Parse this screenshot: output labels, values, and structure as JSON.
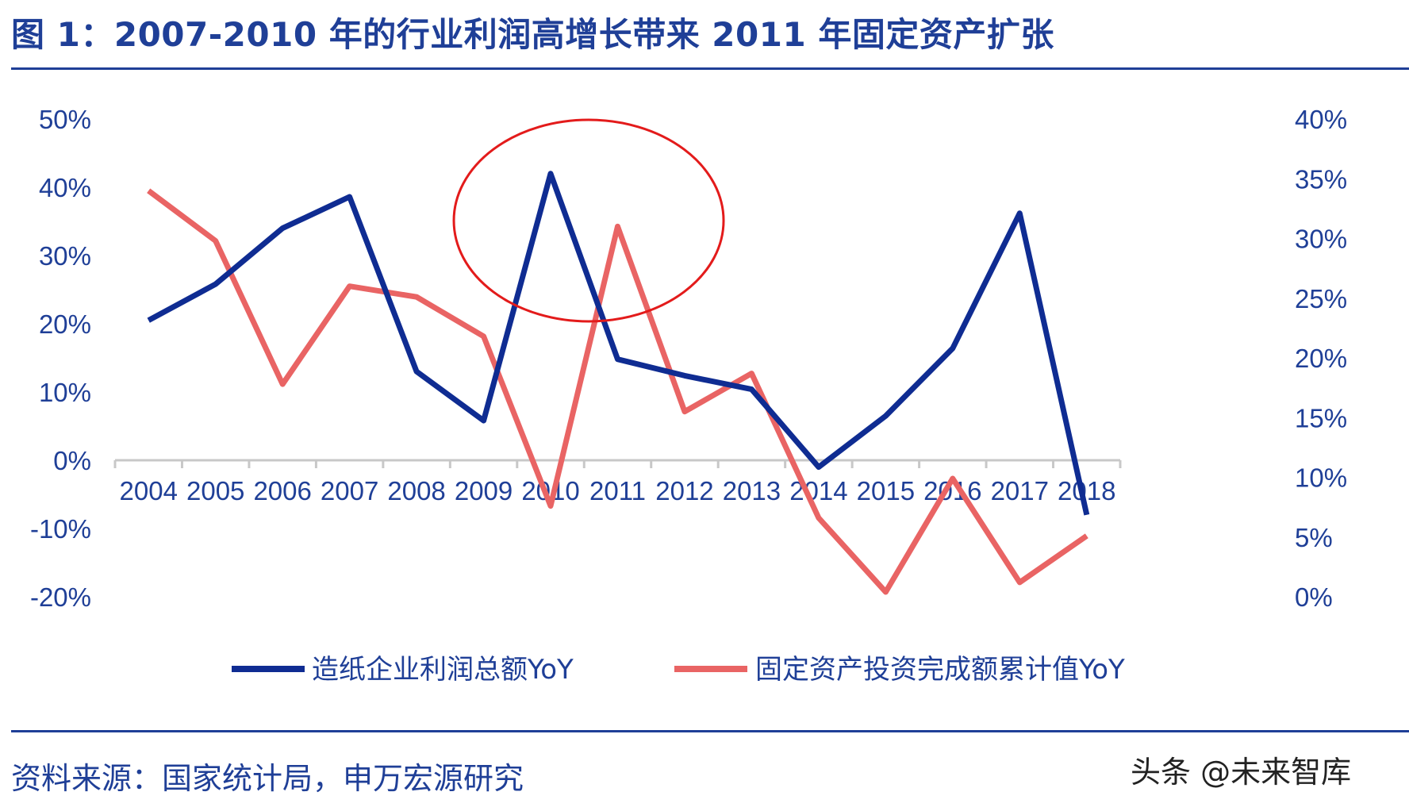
{
  "header": {
    "title": "图 1：2007-2010 年的行业利润高增长带来 2011 年固定资产扩张"
  },
  "footer": {
    "source": "资料来源：国家统计局，申万宏源研究",
    "watermark": "头条 @未来智库"
  },
  "colors": {
    "series1": "#0f2c92",
    "series2": "#e96464",
    "highlight_circle": "#e31b1b",
    "axis": "#c8c8c8",
    "text": "#1f3f97"
  },
  "chart_data": {
    "type": "line",
    "x": [
      "2004",
      "2005",
      "2006",
      "2007",
      "2008",
      "2009",
      "2010",
      "2011",
      "2012",
      "2013",
      "2014",
      "2015",
      "2016",
      "2017",
      "2018"
    ],
    "left_axis": {
      "ticks": [
        "50%",
        "40%",
        "30%",
        "20%",
        "10%",
        "0%",
        "-10%",
        "-20%"
      ],
      "ylim": [
        -20,
        50
      ]
    },
    "right_axis": {
      "ticks": [
        "40%",
        "35%",
        "30%",
        "25%",
        "20%",
        "15%",
        "10%",
        "5%",
        "0%"
      ],
      "ylim": [
        0,
        40
      ]
    },
    "series": [
      {
        "name": "造纸企业利润总额YoY",
        "axis": "left",
        "values": [
          20.5,
          25.8,
          34.0,
          38.6,
          13.0,
          5.8,
          42.0,
          14.8,
          12.4,
          10.4,
          -1.0,
          6.5,
          16.4,
          36.2,
          -8.0
        ]
      },
      {
        "name": "固定资产投资完成额累计值YoY",
        "axis": "right",
        "values": [
          34.0,
          29.8,
          17.8,
          26.0,
          25.1,
          21.8,
          7.6,
          31.0,
          15.5,
          18.7,
          6.6,
          0.4,
          9.9,
          1.2,
          5.1
        ]
      }
    ],
    "annotation": {
      "type": "circle",
      "target": "2010"
    },
    "legend_position": "bottom",
    "grid": false
  }
}
